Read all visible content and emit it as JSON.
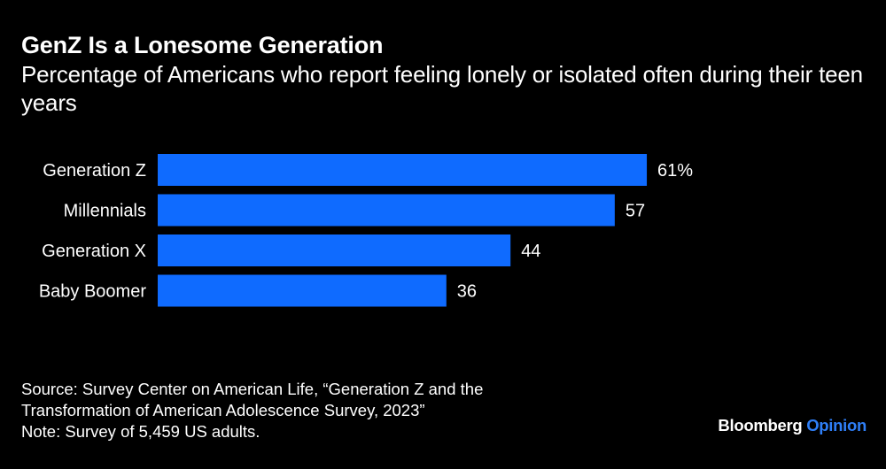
{
  "header": {
    "title": "GenZ Is a Lonesome Generation",
    "subtitle": "Percentage of Americans who report feeling lonely or isolated often during their teen years"
  },
  "chart_data": {
    "type": "bar",
    "orientation": "horizontal",
    "title": "GenZ Is a Lonesome Generation",
    "subtitle": "Percentage of Americans who report feeling lonely or isolated often during their teen years",
    "categories": [
      "Generation Z",
      "Millennials",
      "Generation X",
      "Baby Boomer"
    ],
    "values": [
      61,
      57,
      44,
      36
    ],
    "value_labels": [
      "61%",
      "57",
      "44",
      "36"
    ],
    "xlabel": "",
    "ylabel": "",
    "xlim": [
      0,
      65
    ],
    "grid": false,
    "bar_color": "#0f6bff"
  },
  "footer": {
    "source_line1": "Source: Survey Center on American Life, “Generation Z and the",
    "source_line2": "Transformation of American Adolescence Survey, 2023”",
    "note": "Note: Survey of 5,459 US adults."
  },
  "brand": {
    "name": "Bloomberg",
    "accent": "Opinion",
    "accent_color": "#2f7ff7"
  }
}
